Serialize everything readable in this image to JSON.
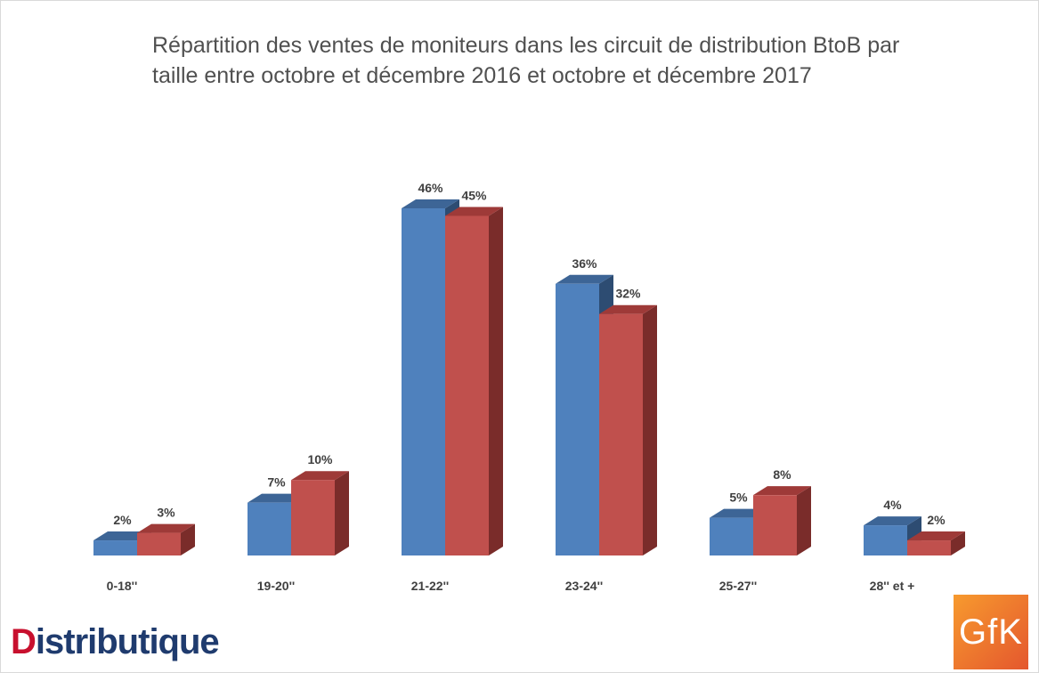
{
  "chart_data": {
    "type": "bar",
    "title_lines": [
      "Répartition des ventes de moniteurs dans les circuit de distribution BtoB par",
      "taille entre octobre et décembre  2016 et octobre et décembre 2017"
    ],
    "categories": [
      "0-18''",
      "19-20''",
      "21-22''",
      "23-24''",
      "25-27''",
      "28'' et  +"
    ],
    "series": [
      {
        "values": [
          2,
          7,
          46,
          36,
          5,
          4
        ],
        "labels": [
          "2%",
          "7%",
          "46%",
          "36%",
          "5%",
          "4%"
        ]
      },
      {
        "values": [
          3,
          10,
          45,
          32,
          8,
          2
        ],
        "labels": [
          "3%",
          "10%",
          "45%",
          "32%",
          "8%",
          "2%"
        ]
      }
    ],
    "colors": {
      "series_front": [
        "#4f81bd",
        "#c0504d"
      ],
      "series_top": [
        "#3d6596",
        "#9e3a38"
      ],
      "series_side": [
        "#2d4c72",
        "#7a2c2a"
      ]
    },
    "ylim": [
      0,
      46
    ],
    "grid": false,
    "legend": "none"
  },
  "logos": {
    "left_first": "D",
    "left_rest": "istributique",
    "right": "GfK"
  }
}
